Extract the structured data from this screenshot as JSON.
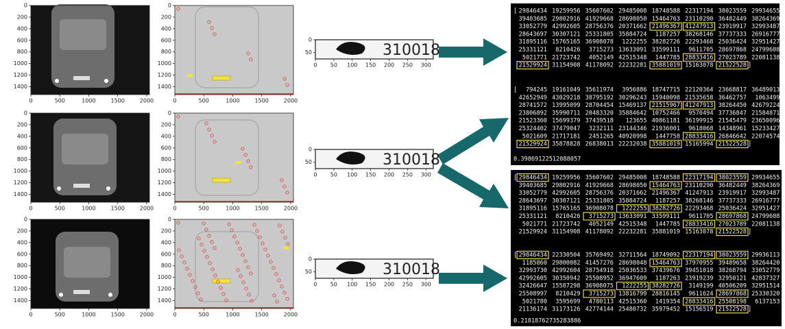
{
  "image_axes": {
    "xlim": [
      0,
      2048
    ],
    "ylim": [
      0,
      1536
    ],
    "xticks": [
      0,
      500,
      1000,
      1500,
      2000
    ],
    "yticks": [
      0,
      200,
      400,
      600,
      800,
      1000,
      1200,
      1400
    ]
  },
  "plate_axes": {
    "xlim": [
      0,
      320
    ],
    "ylim": [
      0,
      75
    ],
    "xticks": [
      0,
      50,
      100,
      150,
      200,
      250,
      300
    ],
    "yticks": [
      0,
      50
    ]
  },
  "plate_text": "310018",
  "bracket_open": "[",
  "bracket_close": "]",
  "outputs": [
    {
      "matrices": [
        {
          "rows": [
            [
              29846434,
              19259956,
              35607602,
              29485008,
              18748588,
              22317194,
              38023559,
              29934655
            ],
            [
              39403685,
              29802916,
              41929668,
              28698050,
              15464763,
              23110290,
              36482449,
              38264369
            ],
            [
              33052779,
              42992605,
              28756376,
              20371662,
              21496367,
              41247913,
              23919917,
              32993487
            ],
            [
              28643697,
              30307121,
              25331805,
              35884724,
              1187257,
              38268146,
              37737333,
              26916777
            ],
            [
              31895116,
              15765165,
              36908078,
              1222255,
              38282726,
              22293468,
              25036424,
              32951427
            ],
            [
              25331121,
              8210426,
              3715273,
              13633091,
              33599111,
              9611705,
              28697868,
              24799608
            ],
            [
              5021771,
              21723742,
              4052149,
              42515348,
              1447785,
              28833416,
              27023789,
              22081138
            ],
            [
              21529924,
              31154908,
              41178092,
              22232281,
              35881019,
              15163078,
              21522528
            ]
          ]
        },
        {
          "rows": [
            [
              794245,
              19161049,
              35611974,
              3956886,
              18747715,
              22120364,
              23668817,
              36489013
            ],
            [
              42652949,
              43029218,
              38795192,
              30296243,
              15940098,
              21535658,
              36462757,
              1063499
            ],
            [
              28741572,
              13995099,
              28704454,
              15469137,
              21515967,
              41247913,
              38264450,
              42679224
            ],
            [
              23806892,
              35990711,
              20483320,
              35884642,
              10752466,
              9570494,
              37736847,
              21584871
            ],
            [
              21523360,
              15699379,
              37439518,
              123655,
              40861181,
              36199915,
              21545479,
              23650096
            ],
            [
              25324402,
              37479047,
              3232111,
              23144346,
              21936001,
              9618068,
              14348961,
              15233427
            ],
            [
              5021609,
              21717181,
              2451265,
              40920998,
              1447758,
              28833416,
              26846642,
              22074574
            ],
            [
              21529924,
              35878828,
              26838013,
              22232038,
              35881019,
              15165994,
              21522528
            ]
          ]
        }
      ],
      "score": "0.39869122512088057"
    },
    {
      "matrices": [
        {
          "rows": [
            [
              29846434,
              19259956,
              35607602,
              29485008,
              18748588,
              22317194,
              38023559,
              29934655
            ],
            [
              39403685,
              29802916,
              41929668,
              28698050,
              15464763,
              23110290,
              36482449,
              38264369
            ],
            [
              33052779,
              42992605,
              28756376,
              20371662,
              21496367,
              41247913,
              23919917,
              32993487
            ],
            [
              28643697,
              30307121,
              25331805,
              35884724,
              1187257,
              38268146,
              37737333,
              26916777
            ],
            [
              31895116,
              15765165,
              36908078,
              1222255,
              38282726,
              22293468,
              25036424,
              32951427
            ],
            [
              25331121,
              8210426,
              3715273,
              13633091,
              33599111,
              9611705,
              28697868,
              24799608
            ],
            [
              5021771,
              21723742,
              4052149,
              42515348,
              1447785,
              28833416,
              27023789,
              22081138
            ],
            [
              21529924,
              31154908,
              41178092,
              22232281,
              35881019,
              15163078,
              21522528
            ]
          ]
        },
        {
          "rows": [
            [
              29846434,
              22330504,
              35769492,
              32711564,
              18749092,
              22317194,
              38023559,
              29936113
            ],
            [
              1185860,
              29800082,
              41457276,
              28698048,
              15464763,
              37970955,
              39489658,
              38264420
            ],
            [
              32993730,
              42992604,
              28754918,
              25036533,
              37439676,
              39451018,
              38268794,
              33052779
            ],
            [
              42992605,
              30350942,
              25508952,
              36947609,
              1187263,
              23919239,
              32950121,
              42837327
            ],
            [
              32426647,
              15587298,
              36908075,
              1222255,
              38282726,
              3149199,
              40506209,
              32951514
            ],
            [
              25508997,
              8210429,
              3715273,
              13816799,
              28816145,
              9611624,
              28697868,
              25330320
            ],
            [
              5021780,
              3595699,
              4780113,
              42515360,
              1419354,
              28833416,
              25508198,
              6137153
            ],
            [
              21136174,
              31173126,
              42774144,
              25480732,
              35979452,
              15156519,
              21522528
            ]
          ]
        }
      ],
      "score": "0.21818762735283886"
    }
  ]
}
